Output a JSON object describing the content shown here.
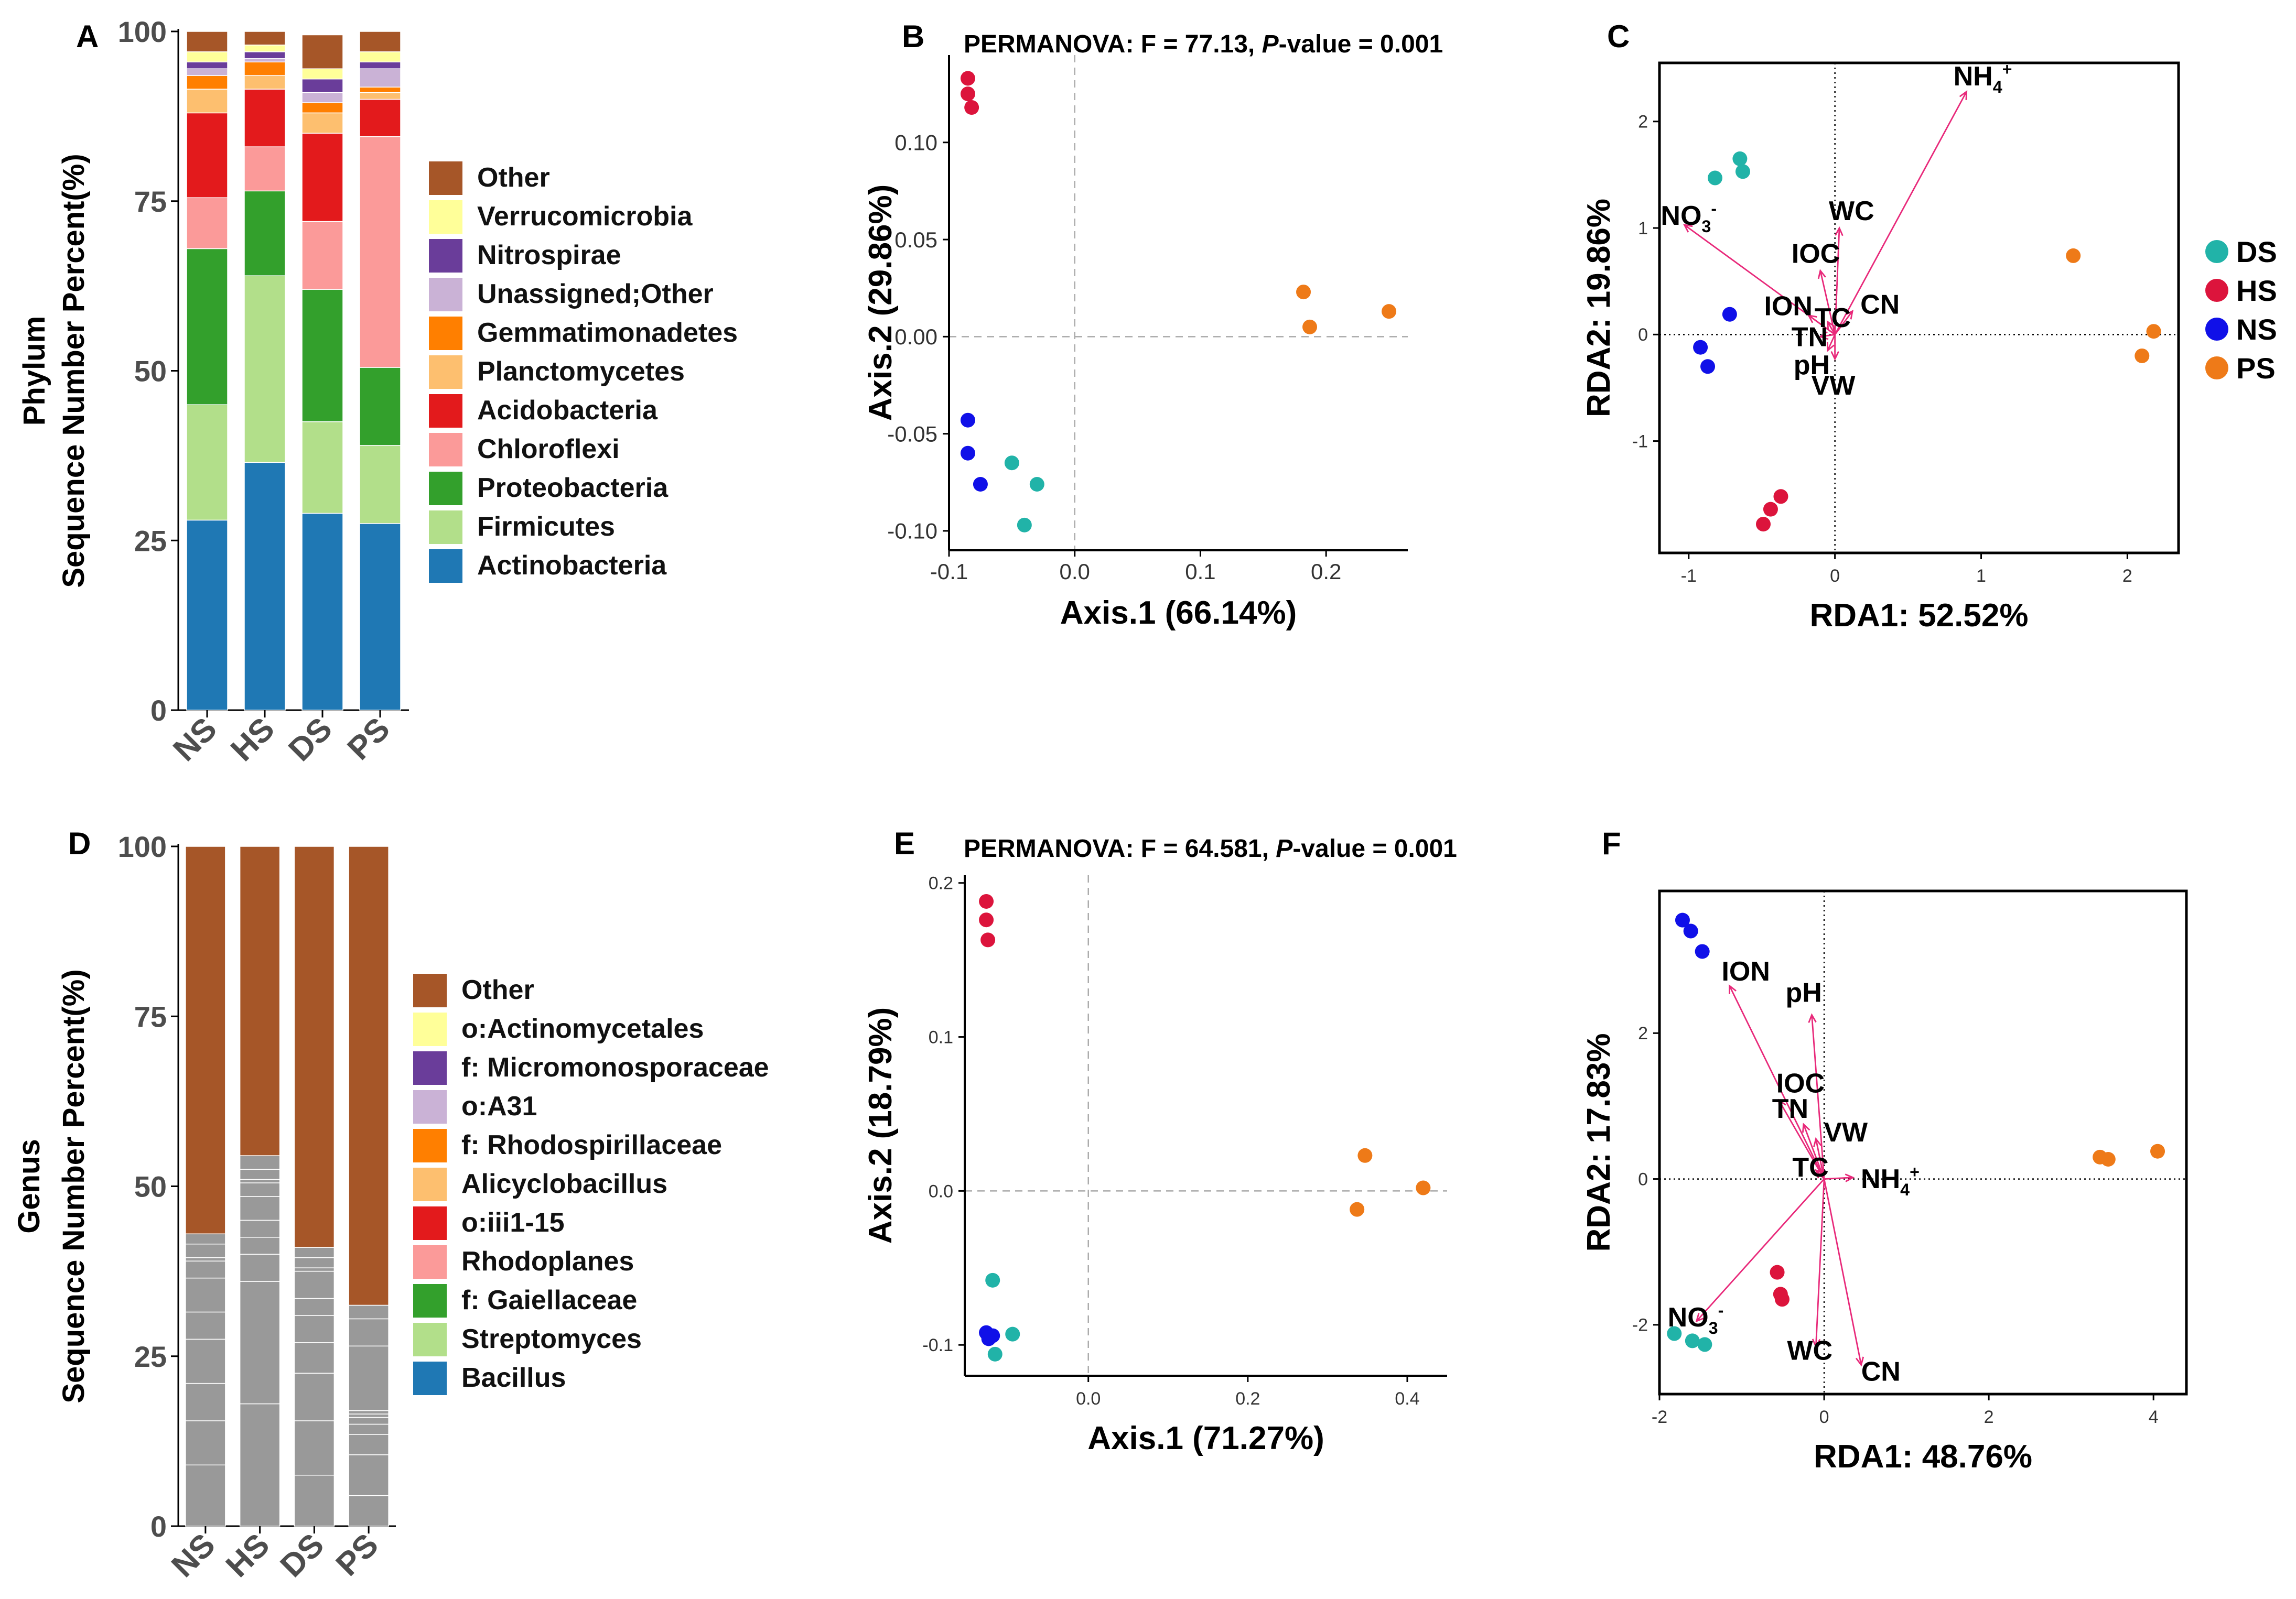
{
  "colors": {
    "Other": "#A65628",
    "Verrucomicrobia": "#FFFF99",
    "Nitrospirae": "#6A3D9A",
    "Unassigned;Other": "#CAB2D6",
    "Gemmatimonadetes": "#FF7F00",
    "Planctomycetes": "#FDBF6F",
    "Acidobacteria": "#E31A1C",
    "Chloroflexi": "#FB9A99",
    "Proteobacteria": "#33A02C",
    "Firmicutes": "#B2DF8A",
    "Actinobacteria": "#1F78B4",
    "DS": "#21B3A8",
    "HS": "#DC143C",
    "NS": "#1010E8",
    "PS": "#EE7A18",
    "arrow": "#E8297A"
  },
  "chart_data": [
    {
      "panel": "A",
      "type": "bar",
      "stacked": true,
      "title": "",
      "ylabel_lines": [
        "Phylum",
        "Sequence Number Percent(%)"
      ],
      "ylim": [
        0,
        100
      ],
      "yticks": [
        "0",
        "25",
        "50",
        "75",
        "100"
      ],
      "categories": [
        "NS",
        "HS",
        "DS",
        "PS"
      ],
      "series": [
        {
          "name": "Actinobacteria",
          "values": [
            28,
            36.5,
            29,
            27.5
          ]
        },
        {
          "name": "Firmicutes",
          "values": [
            17,
            27.5,
            13.5,
            11.5
          ]
        },
        {
          "name": "Proteobacteria",
          "values": [
            23,
            12.5,
            19.5,
            11.5
          ]
        },
        {
          "name": "Chloroflexi",
          "values": [
            7.5,
            6.5,
            10,
            34
          ]
        },
        {
          "name": "Acidobacteria",
          "values": [
            12.5,
            8.5,
            13,
            5.5
          ]
        },
        {
          "name": "Planctomycetes",
          "values": [
            3.5,
            2,
            3,
            1
          ]
        },
        {
          "name": "Gemmatimonadetes",
          "values": [
            2,
            2,
            1.5,
            0.8
          ]
        },
        {
          "name": "Unassigned;Other",
          "values": [
            1,
            0.5,
            1.5,
            2.7
          ]
        },
        {
          "name": "Nitrospirae",
          "values": [
            1,
            1,
            2,
            1
          ]
        },
        {
          "name": "Verrucomicrobia",
          "values": [
            1.5,
            1,
            1.5,
            1.5
          ]
        },
        {
          "name": "Other",
          "values": [
            3,
            2,
            5,
            3
          ]
        }
      ],
      "legend_order": [
        "Other",
        "Verrucomicrobia",
        "Nitrospirae",
        "Unassigned;Other",
        "Gemmatimonadetes",
        "Planctomycetes",
        "Acidobacteria",
        "Chloroflexi",
        "Proteobacteria",
        "Firmicutes",
        "Actinobacteria"
      ]
    },
    {
      "panel": "B",
      "type": "scatter",
      "title": "PERMANOVA: F = 77.13, ",
      "title_italic": "P",
      "title_end": "-value = 0.001",
      "xlabel": "Axis.1 (66.14%)",
      "ylabel": "Axis.2 (29.86%)",
      "xlim": [
        -0.1,
        0.265
      ],
      "ylim": [
        -0.11,
        0.145
      ],
      "xticks": [
        "-0.1",
        "0.0",
        "0.1",
        "0.2"
      ],
      "yticks": [
        "-0.10",
        "-0.05",
        "0.00",
        "0.05",
        "0.10"
      ],
      "points": [
        {
          "group": "HS",
          "x": -0.085,
          "y": 0.133
        },
        {
          "group": "HS",
          "x": -0.085,
          "y": 0.125
        },
        {
          "group": "HS",
          "x": -0.082,
          "y": 0.118
        },
        {
          "group": "PS",
          "x": 0.182,
          "y": 0.023
        },
        {
          "group": "PS",
          "x": 0.187,
          "y": 0.005
        },
        {
          "group": "PS",
          "x": 0.25,
          "y": 0.013
        },
        {
          "group": "NS",
          "x": -0.085,
          "y": -0.043
        },
        {
          "group": "NS",
          "x": -0.085,
          "y": -0.06
        },
        {
          "group": "NS",
          "x": -0.075,
          "y": -0.076
        },
        {
          "group": "DS",
          "x": -0.05,
          "y": -0.065
        },
        {
          "group": "DS",
          "x": -0.03,
          "y": -0.076
        },
        {
          "group": "DS",
          "x": -0.04,
          "y": -0.097
        }
      ]
    },
    {
      "panel": "C",
      "type": "scatter",
      "subtype": "rda-biplot",
      "xlabel": "RDA1: 52.52%",
      "ylabel": "RDA2: 19.86%",
      "xlim": [
        -1.2,
        2.35
      ],
      "ylim": [
        -2.05,
        2.55
      ],
      "xticks": [
        "-1",
        "0",
        "1",
        "2"
      ],
      "yticks": [
        "-1",
        "0",
        "1",
        "2"
      ],
      "points": [
        {
          "group": "DS",
          "x": -0.82,
          "y": 1.47
        },
        {
          "group": "DS",
          "x": -0.65,
          "y": 1.65
        },
        {
          "group": "DS",
          "x": -0.63,
          "y": 1.53
        },
        {
          "group": "HS",
          "x": -0.37,
          "y": -1.52
        },
        {
          "group": "HS",
          "x": -0.44,
          "y": -1.64
        },
        {
          "group": "HS",
          "x": -0.49,
          "y": -1.78
        },
        {
          "group": "NS",
          "x": -0.72,
          "y": 0.19
        },
        {
          "group": "NS",
          "x": -0.92,
          "y": -0.12
        },
        {
          "group": "NS",
          "x": -0.87,
          "y": -0.3
        },
        {
          "group": "PS",
          "x": 1.63,
          "y": 0.74
        },
        {
          "group": "PS",
          "x": 2.18,
          "y": 0.03
        },
        {
          "group": "PS",
          "x": 2.1,
          "y": -0.2
        }
      ],
      "arrows": [
        {
          "label": "NH",
          "sub": "4",
          "sup": "+",
          "x": 0.9,
          "y": 2.28
        },
        {
          "label": "NO",
          "sub": "3",
          "sup": "-",
          "x": -1.03,
          "y": 1.03
        },
        {
          "label": "WC",
          "sub": "",
          "sup": "",
          "x": 0.03,
          "y": 1.0
        },
        {
          "label": "IOC",
          "sub": "",
          "sup": "",
          "x": -0.1,
          "y": 0.6
        },
        {
          "label": "ION",
          "sub": "",
          "sup": "",
          "x": -0.18,
          "y": 0.18
        },
        {
          "label": "TC",
          "sub": "",
          "sup": "",
          "x": -0.05,
          "y": 0.12
        },
        {
          "label": "CN",
          "sub": "",
          "sup": "",
          "x": 0.12,
          "y": 0.22
        },
        {
          "label": "TN",
          "sub": "",
          "sup": "",
          "x": -0.1,
          "y": -0.02
        },
        {
          "label": "pH",
          "sub": "",
          "sup": "",
          "x": -0.05,
          "y": -0.15
        },
        {
          "label": "VW",
          "sub": "",
          "sup": "",
          "x": 0.0,
          "y": -0.23
        }
      ],
      "legend": [
        "DS",
        "HS",
        "NS",
        "PS"
      ]
    },
    {
      "panel": "D",
      "type": "bar",
      "stacked": true,
      "title": "",
      "ylabel_lines": [
        "Genus",
        "Sequence Number Percent(%)"
      ],
      "ylim": [
        0,
        100
      ],
      "yticks": [
        "0",
        "25",
        "50",
        "75",
        "100"
      ],
      "categories": [
        "NS",
        "HS",
        "DS",
        "PS"
      ],
      "series": [
        {
          "name": "Bacillus",
          "values": [
            9,
            18,
            7.5,
            4.5
          ]
        },
        {
          "name": "Streptomyces",
          "values": [
            6.5,
            18,
            8,
            6
          ]
        },
        {
          "name": "f: Gaiellaceae",
          "values": [
            5.5,
            4,
            7,
            3
          ]
        },
        {
          "name": "Rhodoplanes",
          "values": [
            6.5,
            2.5,
            4.5,
            1.5
          ]
        },
        {
          "name": "o:iii1-15",
          "values": [
            4,
            2.5,
            4,
            1
          ]
        },
        {
          "name": "Alicyclobacillus",
          "values": [
            5,
            3.5,
            2.5,
            0.5
          ]
        },
        {
          "name": "f: Rhodospirillaceae",
          "values": [
            2.5,
            2,
            4,
            0.5
          ]
        },
        {
          "name": "o:A31",
          "values": [
            0.5,
            0.5,
            0.5,
            9.5
          ]
        },
        {
          "name": "f: Micromonosporaceae",
          "values": [
            2,
            1.5,
            1.5,
            4
          ]
        },
        {
          "name": "o:Actinomycetales",
          "values": [
            1.5,
            2,
            1.5,
            2
          ]
        },
        {
          "name": "Other",
          "values": [
            57,
            45.5,
            59,
            67.5
          ]
        }
      ],
      "legend_order": [
        "Other",
        "o:Actinomycetales",
        "f: Micromonosporaceae",
        "o:A31",
        "f: Rhodospirillaceae",
        "Alicyclobacillus",
        "o:iii1-15",
        "Rhodoplanes",
        "f: Gaiellaceae",
        "Streptomyces",
        "Bacillus"
      ],
      "legend_colors": [
        "#A65628",
        "#FFFF99",
        "#6A3D9A",
        "#CAB2D6",
        "#FF7F00",
        "#FDBF6F",
        "#E31A1C",
        "#FB9A99",
        "#33A02C",
        "#B2DF8A",
        "#1F78B4"
      ]
    },
    {
      "panel": "E",
      "type": "scatter",
      "title": "PERMANOVA: F = 64.581, ",
      "title_italic": "P",
      "title_end": "-value = 0.001",
      "xlabel": "Axis.1 (71.27%)",
      "ylabel": "Axis.2 (18.79%)",
      "xlim": [
        -0.155,
        0.45
      ],
      "ylim": [
        -0.12,
        0.205
      ],
      "xticks": [
        "0.0",
        "0.2",
        "0.4"
      ],
      "yticks": [
        "-0.1",
        "0.0",
        "0.1",
        "0.2"
      ],
      "points": [
        {
          "group": "HS",
          "x": -0.128,
          "y": 0.188
        },
        {
          "group": "HS",
          "x": -0.128,
          "y": 0.176
        },
        {
          "group": "HS",
          "x": -0.126,
          "y": 0.163
        },
        {
          "group": "PS",
          "x": 0.347,
          "y": 0.023
        },
        {
          "group": "PS",
          "x": 0.42,
          "y": 0.002
        },
        {
          "group": "PS",
          "x": 0.337,
          "y": -0.012
        },
        {
          "group": "DS",
          "x": -0.12,
          "y": -0.058
        },
        {
          "group": "DS",
          "x": -0.095,
          "y": -0.093
        },
        {
          "group": "DS",
          "x": -0.117,
          "y": -0.106
        },
        {
          "group": "NS",
          "x": -0.128,
          "y": -0.092
        },
        {
          "group": "NS",
          "x": -0.125,
          "y": -0.096
        },
        {
          "group": "NS",
          "x": -0.12,
          "y": -0.094
        }
      ]
    },
    {
      "panel": "F",
      "type": "scatter",
      "subtype": "rda-biplot",
      "xlabel": "RDA1: 48.76%",
      "ylabel": "RDA2: 17.83%",
      "xlim": [
        -2.0,
        4.4
      ],
      "ylim": [
        -2.95,
        3.95
      ],
      "xticks": [
        "-2",
        "0",
        "2",
        "4"
      ],
      "yticks": [
        "-2",
        "0",
        "2"
      ],
      "points": [
        {
          "group": "NS",
          "x": -1.72,
          "y": 3.55
        },
        {
          "group": "NS",
          "x": -1.62,
          "y": 3.4
        },
        {
          "group": "NS",
          "x": -1.48,
          "y": 3.12
        },
        {
          "group": "HS",
          "x": -0.57,
          "y": -1.28
        },
        {
          "group": "HS",
          "x": -0.53,
          "y": -1.58
        },
        {
          "group": "HS",
          "x": -0.51,
          "y": -1.65
        },
        {
          "group": "DS",
          "x": -1.82,
          "y": -2.12
        },
        {
          "group": "DS",
          "x": -1.6,
          "y": -2.22
        },
        {
          "group": "DS",
          "x": -1.45,
          "y": -2.27
        },
        {
          "group": "PS",
          "x": 3.35,
          "y": 0.3
        },
        {
          "group": "PS",
          "x": 3.45,
          "y": 0.27
        },
        {
          "group": "PS",
          "x": 4.05,
          "y": 0.38
        }
      ],
      "arrows": [
        {
          "label": "ION",
          "sub": "",
          "sup": "",
          "x": -1.15,
          "y": 2.65
        },
        {
          "label": "pH",
          "sub": "",
          "sup": "",
          "x": -0.15,
          "y": 2.25
        },
        {
          "label": "IOC",
          "sub": "",
          "sup": "",
          "x": -0.55,
          "y": 1.08
        },
        {
          "label": "TN",
          "sub": "",
          "sup": "",
          "x": -0.25,
          "y": 0.75
        },
        {
          "label": "VW",
          "sub": "",
          "sup": "",
          "x": -0.1,
          "y": 0.55
        },
        {
          "label": "TC",
          "sub": "",
          "sup": "",
          "x": -0.1,
          "y": 0.12
        },
        {
          "label": "NH",
          "sub": "4",
          "sup": "+",
          "x": 0.35,
          "y": 0.02
        },
        {
          "label": "NO",
          "sub": "3",
          "sup": "-",
          "x": -1.55,
          "y": -1.95
        },
        {
          "label": "WC",
          "sub": "",
          "sup": "",
          "x": -0.1,
          "y": -2.3
        },
        {
          "label": "CN",
          "sub": "",
          "sup": "",
          "x": 0.45,
          "y": -2.55
        }
      ]
    }
  ],
  "panel_letters": [
    "A",
    "B",
    "C",
    "D",
    "E",
    "F"
  ]
}
